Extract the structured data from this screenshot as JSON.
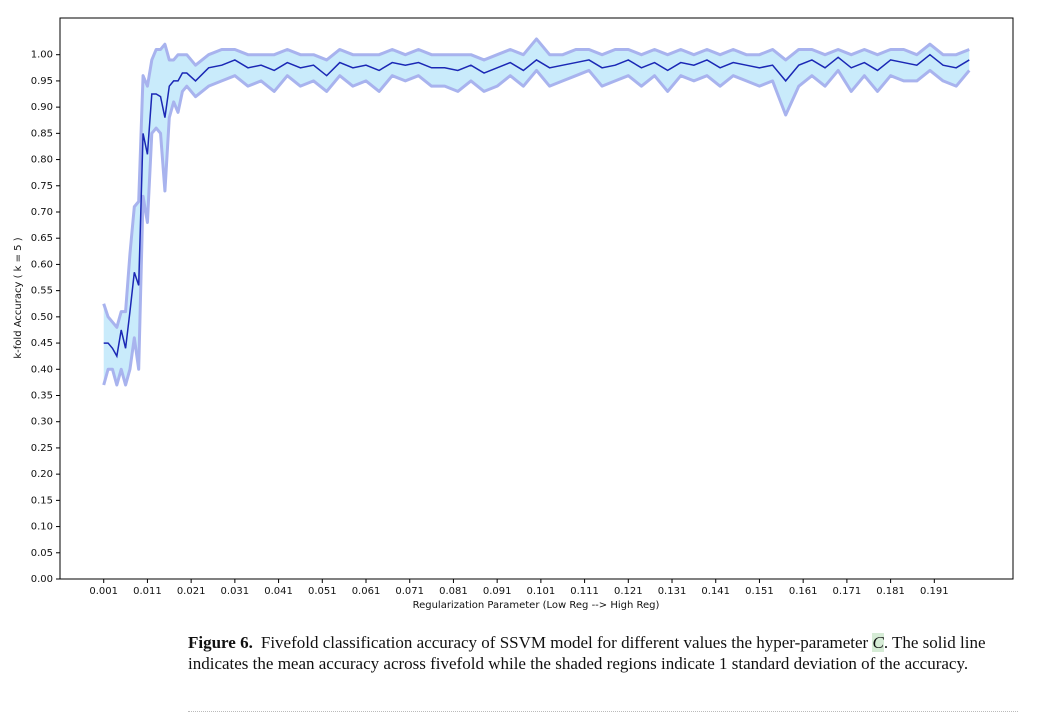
{
  "chart_data": {
    "type": "line",
    "xlabel": "Regularization Parameter (Low Reg --> High Reg)",
    "ylabel": "k-fold Accuracy ( k = 5 )",
    "x": [
      0.001,
      0.002,
      0.003,
      0.004,
      0.005,
      0.006,
      0.007,
      0.008,
      0.009,
      0.01,
      0.011,
      0.012,
      0.013,
      0.014,
      0.015,
      0.016,
      0.017,
      0.018,
      0.019,
      0.02,
      0.022,
      0.025,
      0.028,
      0.031,
      0.034,
      0.037,
      0.04,
      0.043,
      0.046,
      0.049,
      0.052,
      0.055,
      0.058,
      0.061,
      0.064,
      0.067,
      0.07,
      0.073,
      0.076,
      0.079,
      0.082,
      0.085,
      0.088,
      0.091,
      0.094,
      0.097,
      0.1,
      0.103,
      0.106,
      0.109,
      0.112,
      0.115,
      0.118,
      0.121,
      0.124,
      0.127,
      0.13,
      0.133,
      0.136,
      0.139,
      0.142,
      0.145,
      0.148,
      0.151,
      0.154,
      0.157,
      0.16,
      0.163,
      0.166,
      0.169,
      0.172,
      0.175,
      0.178,
      0.181,
      0.184,
      0.187,
      0.19,
      0.193,
      0.196,
      0.199
    ],
    "values": [
      0.45,
      0.45,
      0.44,
      0.425,
      0.475,
      0.44,
      0.51,
      0.585,
      0.56,
      0.85,
      0.81,
      0.925,
      0.925,
      0.92,
      0.88,
      0.94,
      0.95,
      0.95,
      0.965,
      0.965,
      0.95,
      0.975,
      0.98,
      0.99,
      0.975,
      0.98,
      0.97,
      0.985,
      0.975,
      0.98,
      0.96,
      0.985,
      0.975,
      0.98,
      0.97,
      0.985,
      0.98,
      0.985,
      0.975,
      0.975,
      0.97,
      0.98,
      0.965,
      0.975,
      0.985,
      0.97,
      0.99,
      0.975,
      0.98,
      0.985,
      0.99,
      0.975,
      0.98,
      0.99,
      0.975,
      0.985,
      0.97,
      0.985,
      0.98,
      0.99,
      0.975,
      0.985,
      0.98,
      0.975,
      0.98,
      0.95,
      0.98,
      0.99,
      0.975,
      0.995,
      0.975,
      0.985,
      0.97,
      0.99,
      0.985,
      0.98,
      1.0,
      0.98,
      0.975,
      0.99
    ],
    "band": {
      "lower": [
        0.37,
        0.4,
        0.4,
        0.37,
        0.4,
        0.37,
        0.4,
        0.46,
        0.4,
        0.73,
        0.68,
        0.85,
        0.86,
        0.85,
        0.74,
        0.88,
        0.91,
        0.89,
        0.93,
        0.94,
        0.92,
        0.94,
        0.95,
        0.96,
        0.94,
        0.95,
        0.93,
        0.96,
        0.94,
        0.95,
        0.93,
        0.96,
        0.94,
        0.95,
        0.93,
        0.96,
        0.95,
        0.96,
        0.94,
        0.94,
        0.93,
        0.95,
        0.93,
        0.94,
        0.96,
        0.94,
        0.97,
        0.94,
        0.95,
        0.96,
        0.97,
        0.94,
        0.95,
        0.96,
        0.94,
        0.96,
        0.93,
        0.96,
        0.95,
        0.96,
        0.94,
        0.96,
        0.95,
        0.94,
        0.95,
        0.885,
        0.94,
        0.96,
        0.94,
        0.97,
        0.93,
        0.96,
        0.93,
        0.96,
        0.95,
        0.95,
        0.97,
        0.95,
        0.94,
        0.97
      ],
      "upper": [
        0.525,
        0.5,
        0.49,
        0.48,
        0.51,
        0.51,
        0.62,
        0.71,
        0.72,
        0.96,
        0.94,
        0.99,
        1.01,
        1.01,
        1.02,
        0.99,
        0.99,
        1.0,
        1.0,
        1.0,
        0.98,
        1.0,
        1.01,
        1.01,
        1.0,
        1.0,
        1.0,
        1.01,
        1.0,
        1.0,
        0.99,
        1.01,
        1.0,
        1.0,
        1.0,
        1.01,
        1.0,
        1.01,
        1.0,
        1.0,
        1.0,
        1.0,
        0.99,
        1.0,
        1.01,
        1.0,
        1.03,
        1.0,
        1.0,
        1.01,
        1.01,
        1.0,
        1.01,
        1.01,
        1.0,
        1.01,
        1.0,
        1.01,
        1.0,
        1.01,
        1.0,
        1.01,
        1.0,
        1.0,
        1.01,
        0.99,
        1.01,
        1.01,
        1.0,
        1.01,
        1.0,
        1.01,
        1.0,
        1.01,
        1.01,
        1.0,
        1.02,
        1.0,
        1.0,
        1.01
      ],
      "fill": "#c9ebfb",
      "edge_color": "#a8b3ee"
    },
    "color": "#1b28b5",
    "xlim": [
      -0.009,
      0.209
    ],
    "ylim": [
      0,
      1.07
    ],
    "xticks": [
      0.001,
      0.011,
      0.021,
      0.031,
      0.041,
      0.051,
      0.061,
      0.071,
      0.081,
      0.091,
      0.101,
      0.111,
      0.121,
      0.131,
      0.141,
      0.151,
      0.161,
      0.171,
      0.181,
      0.191
    ],
    "yticks": [
      {
        "value": 0,
        "label": "0.00"
      },
      {
        "value": 0.05,
        "label": "0.05"
      },
      {
        "value": 0.1,
        "label": "0.10"
      },
      {
        "value": 0.15,
        "label": "0.15"
      },
      {
        "value": 0.2,
        "label": "0.20"
      },
      {
        "value": 0.25,
        "label": "0.25"
      },
      {
        "value": 0.3,
        "label": "0.30"
      },
      {
        "value": 0.35,
        "label": "0.35"
      },
      {
        "value": 0.4,
        "label": "0.40"
      },
      {
        "value": 0.45,
        "label": "0.45"
      },
      {
        "value": 0.5,
        "label": "0.50"
      },
      {
        "value": 0.55,
        "label": "0.55"
      },
      {
        "value": 0.6,
        "label": "0.60"
      },
      {
        "value": 0.65,
        "label": "0.65"
      },
      {
        "value": 0.7,
        "label": "0.70"
      },
      {
        "value": 0.75,
        "label": "0.75"
      },
      {
        "value": 0.8,
        "label": "0.80"
      },
      {
        "value": 0.85,
        "label": "0.85"
      },
      {
        "value": 0.9,
        "label": "0.90"
      },
      {
        "value": 0.95,
        "label": "0.95"
      },
      {
        "value": 1.0,
        "label": "1.00"
      }
    ]
  },
  "caption": {
    "label": "Figure 6.",
    "text_before": "Fivefold classification accuracy of SSVM model for different values the hyper-parameter",
    "symbol": "C",
    "text_after": ". The solid line indicates the mean accuracy across fivefold while the shaded regions indicate 1 standard deviation of the accuracy."
  }
}
